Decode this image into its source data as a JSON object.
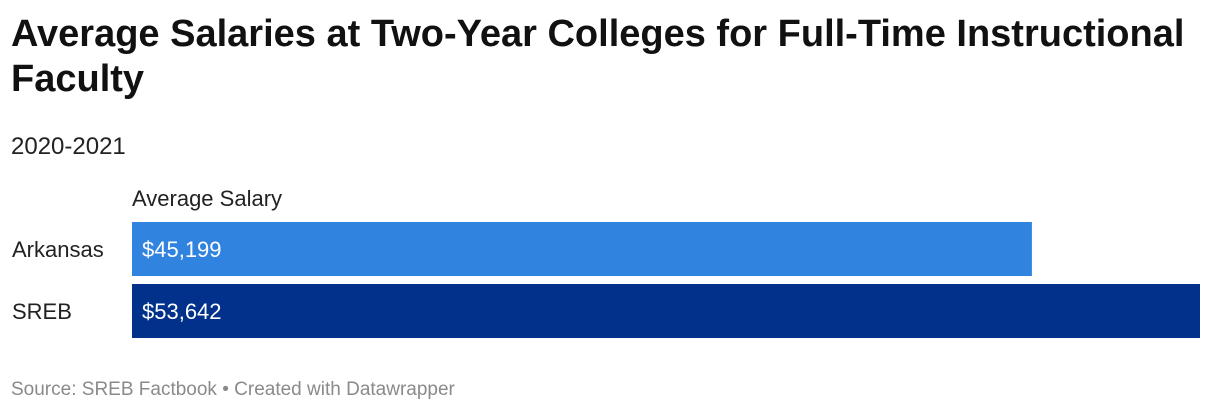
{
  "chart_data": {
    "type": "bar",
    "orientation": "horizontal",
    "title": "Average Salaries at Two-Year Colleges for Full-Time Instructional Faculty",
    "subtitle": "2020-2021",
    "column_header": "Average Salary",
    "categories": [
      "Arkansas",
      "SREB"
    ],
    "values": [
      45199,
      53642
    ],
    "value_labels": [
      "$45,199",
      "$53,642"
    ],
    "colors": [
      "#3183e0",
      "#01318a"
    ],
    "xlim": [
      0,
      53642
    ],
    "grid": false
  },
  "footer": {
    "source_label": "Source:",
    "source": "SREB Factbook",
    "separator": "•",
    "credit": "Created with Datawrapper"
  }
}
